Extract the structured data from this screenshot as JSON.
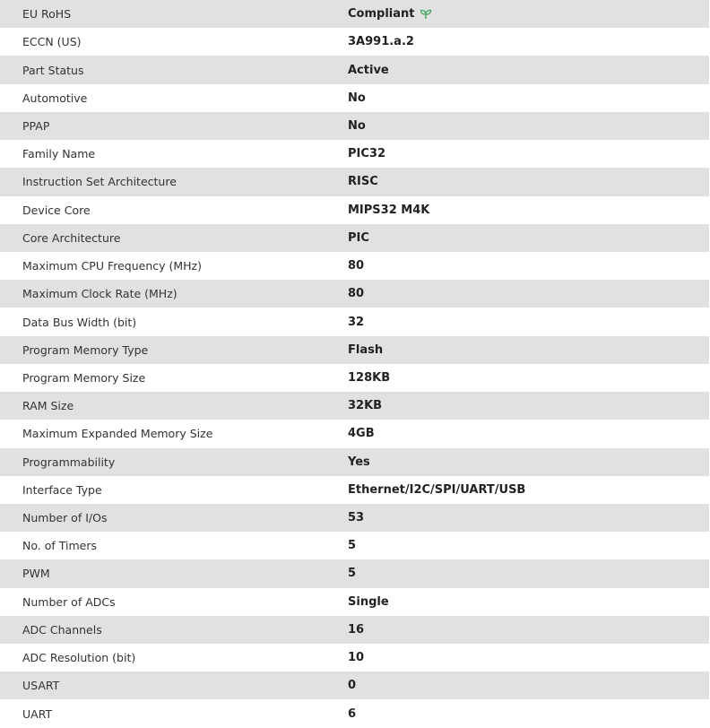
{
  "rows": [
    {
      "label": "EU RoHS",
      "value": "Compliant",
      "icon": "leaf-icon",
      "icon_color": "#3aa655"
    },
    {
      "label": "ECCN (US)",
      "value": "3A991.a.2"
    },
    {
      "label": "Part Status",
      "value": "Active"
    },
    {
      "label": "Automotive",
      "value": "No"
    },
    {
      "label": "PPAP",
      "value": "No"
    },
    {
      "label": "Family Name",
      "value": "PIC32"
    },
    {
      "label": "Instruction Set Architecture",
      "value": "RISC"
    },
    {
      "label": "Device Core",
      "value": "MIPS32 M4K"
    },
    {
      "label": "Core Architecture",
      "value": "PIC"
    },
    {
      "label": "Maximum CPU Frequency (MHz)",
      "value": "80"
    },
    {
      "label": "Maximum Clock Rate (MHz)",
      "value": "80"
    },
    {
      "label": "Data Bus Width (bit)",
      "value": "32"
    },
    {
      "label": "Program Memory Type",
      "value": "Flash"
    },
    {
      "label": "Program Memory Size",
      "value": "128KB"
    },
    {
      "label": "RAM Size",
      "value": "32KB"
    },
    {
      "label": "Maximum Expanded Memory Size",
      "value": "4GB"
    },
    {
      "label": "Programmability",
      "value": "Yes"
    },
    {
      "label": "Interface Type",
      "value": "Ethernet/I2C/SPI/UART/USB"
    },
    {
      "label": "Number of I/Os",
      "value": "53"
    },
    {
      "label": "No. of Timers",
      "value": "5"
    },
    {
      "label": "PWM",
      "value": "5"
    },
    {
      "label": "Number of ADCs",
      "value": "Single"
    },
    {
      "label": "ADC Channels",
      "value": "16"
    },
    {
      "label": "ADC Resolution (bit)",
      "value": "10"
    },
    {
      "label": "USART",
      "value": "0"
    },
    {
      "label": "UART",
      "value": "6"
    }
  ]
}
